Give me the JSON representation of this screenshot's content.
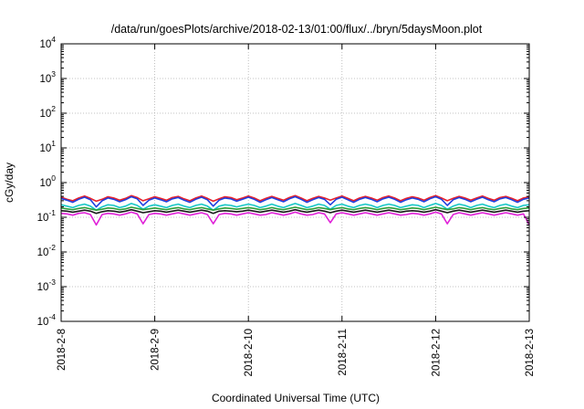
{
  "chart_data": {
    "type": "line",
    "title": "/data/run/goesPlots/archive/2018-02-13/01:00/flux/../bryn/5daysMoon.plot",
    "xlabel": "Coordinated Universal Time (UTC)",
    "ylabel": "cGy/day",
    "y_scale": "log",
    "ylim": [
      0.0001,
      10000
    ],
    "xlim": [
      "2018-02-08",
      "2018-02-13"
    ],
    "grid": true,
    "x_ticks": [
      "2018-2-8",
      "2018-2-9",
      "2018-2-10",
      "2018-2-11",
      "2018-2-12",
      "2018-2-13"
    ],
    "y_ticks": [
      {
        "base": "10",
        "exp": "-4",
        "value": 0.0001
      },
      {
        "base": "10",
        "exp": "-3",
        "value": 0.001
      },
      {
        "base": "10",
        "exp": "-2",
        "value": 0.01
      },
      {
        "base": "10",
        "exp": "-1",
        "value": 0.1
      },
      {
        "base": "10",
        "exp": "0",
        "value": 1
      },
      {
        "base": "10",
        "exp": "1",
        "value": 10
      },
      {
        "base": "10",
        "exp": "2",
        "value": 100
      },
      {
        "base": "10",
        "exp": "3",
        "value": 1000
      },
      {
        "base": "10",
        "exp": "4",
        "value": 10000
      }
    ],
    "series": [
      {
        "color": "#e8202a",
        "values": [
          0.38,
          0.33,
          0.3,
          0.36,
          0.41,
          0.35,
          0.29,
          0.33,
          0.39,
          0.36,
          0.31,
          0.35,
          0.42,
          0.37,
          0.3,
          0.34,
          0.39,
          0.35,
          0.31,
          0.37,
          0.4,
          0.34,
          0.3,
          0.36,
          0.41,
          0.35,
          0.29,
          0.34,
          0.39,
          0.37,
          0.32,
          0.36,
          0.41,
          0.36,
          0.3,
          0.35,
          0.4,
          0.35,
          0.31,
          0.37,
          0.42,
          0.36,
          0.3,
          0.35,
          0.4,
          0.36,
          0.31,
          0.36,
          0.41,
          0.35,
          0.3,
          0.36,
          0.4,
          0.36,
          0.31,
          0.37,
          0.41,
          0.36,
          0.3,
          0.35,
          0.39,
          0.36,
          0.31,
          0.37,
          0.42,
          0.36,
          0.3,
          0.35,
          0.4,
          0.36,
          0.31,
          0.36,
          0.41,
          0.35,
          0.31,
          0.37,
          0.4,
          0.35,
          0.3,
          0.36,
          0.39
        ]
      },
      {
        "color": "#1f3fe0",
        "values": [
          0.35,
          0.31,
          0.27,
          0.33,
          0.38,
          0.32,
          0.2,
          0.3,
          0.36,
          0.33,
          0.28,
          0.32,
          0.39,
          0.34,
          0.22,
          0.31,
          0.36,
          0.32,
          0.28,
          0.34,
          0.37,
          0.31,
          0.27,
          0.33,
          0.38,
          0.32,
          0.21,
          0.31,
          0.36,
          0.34,
          0.29,
          0.33,
          0.38,
          0.33,
          0.27,
          0.32,
          0.37,
          0.32,
          0.28,
          0.34,
          0.39,
          0.33,
          0.27,
          0.32,
          0.37,
          0.33,
          0.23,
          0.33,
          0.38,
          0.32,
          0.27,
          0.33,
          0.37,
          0.33,
          0.28,
          0.34,
          0.38,
          0.33,
          0.27,
          0.32,
          0.36,
          0.33,
          0.28,
          0.34,
          0.39,
          0.33,
          0.22,
          0.32,
          0.37,
          0.33,
          0.28,
          0.33,
          0.38,
          0.32,
          0.28,
          0.34,
          0.37,
          0.32,
          0.27,
          0.33,
          0.36
        ]
      },
      {
        "color": "#16c7c7",
        "values": [
          0.23,
          0.21,
          0.19,
          0.22,
          0.24,
          0.21,
          0.16,
          0.2,
          0.23,
          0.22,
          0.19,
          0.21,
          0.25,
          0.22,
          0.17,
          0.21,
          0.23,
          0.21,
          0.19,
          0.22,
          0.24,
          0.21,
          0.19,
          0.22,
          0.24,
          0.21,
          0.16,
          0.21,
          0.23,
          0.22,
          0.2,
          0.22,
          0.24,
          0.22,
          0.19,
          0.21,
          0.24,
          0.21,
          0.19,
          0.22,
          0.25,
          0.22,
          0.19,
          0.21,
          0.24,
          0.22,
          0.17,
          0.22,
          0.24,
          0.21,
          0.19,
          0.22,
          0.24,
          0.22,
          0.19,
          0.22,
          0.24,
          0.22,
          0.19,
          0.21,
          0.23,
          0.22,
          0.19,
          0.22,
          0.25,
          0.22,
          0.17,
          0.21,
          0.24,
          0.22,
          0.19,
          0.22,
          0.24,
          0.21,
          0.19,
          0.22,
          0.24,
          0.21,
          0.19,
          0.22,
          0.23
        ]
      },
      {
        "color": "#2e9e3a",
        "values": [
          0.185,
          0.175,
          0.165,
          0.18,
          0.19,
          0.175,
          0.16,
          0.17,
          0.185,
          0.18,
          0.165,
          0.175,
          0.195,
          0.18,
          0.165,
          0.175,
          0.185,
          0.175,
          0.165,
          0.18,
          0.19,
          0.175,
          0.165,
          0.18,
          0.19,
          0.175,
          0.16,
          0.175,
          0.185,
          0.18,
          0.17,
          0.18,
          0.19,
          0.18,
          0.165,
          0.175,
          0.19,
          0.175,
          0.165,
          0.18,
          0.195,
          0.18,
          0.165,
          0.175,
          0.19,
          0.18,
          0.165,
          0.18,
          0.19,
          0.175,
          0.165,
          0.18,
          0.19,
          0.18,
          0.165,
          0.18,
          0.19,
          0.18,
          0.165,
          0.175,
          0.185,
          0.18,
          0.165,
          0.18,
          0.195,
          0.18,
          0.165,
          0.175,
          0.19,
          0.18,
          0.165,
          0.18,
          0.19,
          0.175,
          0.165,
          0.18,
          0.19,
          0.175,
          0.165,
          0.18,
          0.185
        ]
      },
      {
        "color": "#1a1a1a",
        "values": [
          0.155,
          0.15,
          0.14,
          0.15,
          0.16,
          0.15,
          0.13,
          0.145,
          0.155,
          0.15,
          0.14,
          0.15,
          0.165,
          0.15,
          0.135,
          0.145,
          0.155,
          0.15,
          0.14,
          0.15,
          0.16,
          0.15,
          0.14,
          0.15,
          0.16,
          0.15,
          0.13,
          0.15,
          0.155,
          0.15,
          0.145,
          0.15,
          0.16,
          0.15,
          0.14,
          0.15,
          0.16,
          0.15,
          0.14,
          0.15,
          0.165,
          0.15,
          0.14,
          0.15,
          0.16,
          0.15,
          0.135,
          0.15,
          0.16,
          0.15,
          0.14,
          0.15,
          0.16,
          0.15,
          0.14,
          0.15,
          0.16,
          0.15,
          0.14,
          0.15,
          0.155,
          0.15,
          0.14,
          0.15,
          0.165,
          0.15,
          0.135,
          0.15,
          0.16,
          0.15,
          0.14,
          0.15,
          0.16,
          0.15,
          0.14,
          0.15,
          0.16,
          0.15,
          0.14,
          0.15,
          0.155
        ]
      },
      {
        "color": "#e020d8",
        "values": [
          0.13,
          0.125,
          0.115,
          0.13,
          0.135,
          0.12,
          0.06,
          0.12,
          0.13,
          0.125,
          0.115,
          0.125,
          0.14,
          0.125,
          0.065,
          0.12,
          0.13,
          0.125,
          0.115,
          0.125,
          0.135,
          0.125,
          0.115,
          0.125,
          0.135,
          0.12,
          0.065,
          0.12,
          0.13,
          0.125,
          0.115,
          0.125,
          0.135,
          0.125,
          0.115,
          0.12,
          0.135,
          0.125,
          0.115,
          0.125,
          0.14,
          0.125,
          0.115,
          0.12,
          0.135,
          0.125,
          0.07,
          0.125,
          0.135,
          0.125,
          0.115,
          0.125,
          0.135,
          0.125,
          0.115,
          0.125,
          0.135,
          0.125,
          0.115,
          0.12,
          0.13,
          0.125,
          0.115,
          0.125,
          0.14,
          0.125,
          0.065,
          0.12,
          0.135,
          0.125,
          0.115,
          0.125,
          0.135,
          0.125,
          0.115,
          0.125,
          0.135,
          0.125,
          0.115,
          0.125,
          0.06
        ]
      }
    ]
  }
}
